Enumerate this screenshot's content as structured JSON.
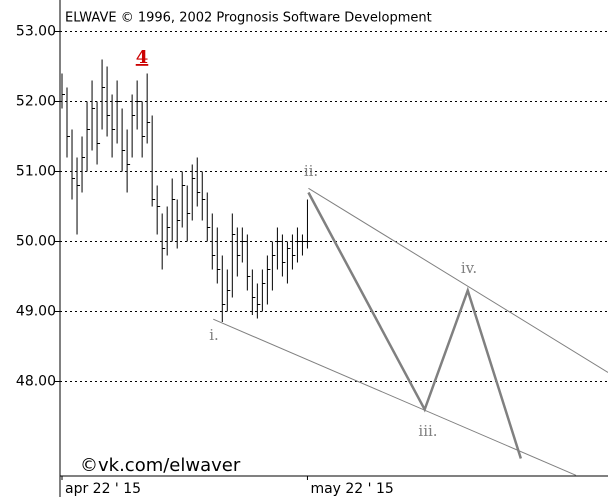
{
  "chart_data": {
    "type": "ohlc",
    "title": "ELWAVE © 1996, 2002 Prognosis Software Development",
    "watermark": "©vk.com/elwaver",
    "color": "#000000",
    "x": [
      0,
      1,
      2,
      3,
      4,
      5,
      6,
      7,
      8,
      9,
      10,
      11,
      12,
      13,
      14,
      15,
      16,
      17,
      18,
      19,
      20,
      21,
      22,
      23,
      24,
      25,
      26,
      27,
      28,
      29,
      30,
      31,
      32,
      33,
      34,
      35,
      36,
      37,
      38,
      39,
      40,
      41,
      42,
      43,
      44,
      45,
      46,
      47,
      48,
      49
    ],
    "high": [
      52.4,
      52.2,
      51.6,
      51.2,
      51.5,
      52.0,
      52.3,
      52.0,
      52.6,
      52.5,
      52.1,
      52.3,
      51.9,
      51.6,
      52.1,
      52.3,
      52.0,
      52.4,
      51.8,
      50.8,
      50.4,
      50.5,
      50.9,
      50.6,
      51.0,
      50.8,
      51.1,
      51.2,
      51.0,
      50.7,
      50.4,
      50.2,
      49.8,
      49.6,
      50.4,
      50.2,
      50.2,
      50.1,
      49.6,
      49.4,
      49.6,
      49.8,
      50.0,
      50.2,
      50.1,
      50.0,
      50.1,
      50.2,
      50.1,
      50.6
    ],
    "low": [
      51.9,
      51.2,
      50.6,
      50.1,
      50.7,
      51.0,
      51.3,
      51.1,
      51.6,
      51.5,
      51.2,
      51.4,
      51.0,
      50.7,
      51.2,
      51.6,
      51.2,
      51.4,
      50.5,
      50.1,
      49.6,
      49.8,
      50.0,
      49.9,
      50.2,
      50.0,
      50.3,
      50.5,
      50.3,
      50.0,
      49.6,
      49.4,
      48.85,
      49.0,
      49.2,
      49.5,
      49.7,
      49.3,
      48.95,
      48.9,
      49.0,
      49.1,
      49.3,
      49.6,
      49.5,
      49.4,
      49.6,
      49.7,
      49.8,
      49.9
    ],
    "close": [
      52.1,
      51.5,
      50.9,
      50.8,
      51.2,
      51.6,
      51.9,
      51.4,
      52.2,
      51.8,
      51.6,
      52.0,
      51.3,
      51.1,
      51.8,
      52.0,
      51.5,
      51.7,
      50.6,
      50.5,
      49.9,
      50.2,
      50.6,
      50.3,
      50.8,
      50.4,
      50.9,
      50.7,
      50.6,
      50.2,
      49.8,
      49.6,
      49.1,
      49.3,
      50.1,
      49.8,
      50.0,
      49.5,
      49.2,
      49.1,
      49.4,
      49.6,
      49.8,
      50.0,
      49.7,
      49.9,
      49.8,
      50.0,
      50.0,
      50.0
    ],
    "projection": {
      "color": "#808080",
      "x": [
        49.2,
        72.4,
        81,
        91.6
      ],
      "values": [
        50.7,
        47.6,
        49.3,
        46.9
      ]
    },
    "channel_lines": [
      {
        "color": "#808080",
        "x": [
          30.2,
          102.6
        ],
        "values": [
          48.89,
          46.66
        ]
      },
      {
        "color": "#808080",
        "x": [
          49.2,
          109
        ],
        "values": [
          50.76,
          48.13
        ]
      }
    ],
    "wave_labels": [
      "4",
      "i.",
      "ii.",
      "iii.",
      "iv."
    ],
    "xlim": [
      0,
      109
    ],
    "xticks": [
      {
        "value": 0,
        "label": "apr 22 ' 15"
      },
      {
        "value": 49,
        "label": "may 22 ' 15"
      }
    ],
    "ylim": [
      46.65,
      53.45
    ],
    "yticks": [
      {
        "value": 48,
        "label": "48.00"
      },
      {
        "value": 49,
        "label": "49.00"
      },
      {
        "value": 50,
        "label": "50.00"
      },
      {
        "value": 51,
        "label": "51.00"
      },
      {
        "value": 52,
        "label": "52.00"
      },
      {
        "value": 53,
        "label": "53.00"
      }
    ],
    "grid": true
  }
}
